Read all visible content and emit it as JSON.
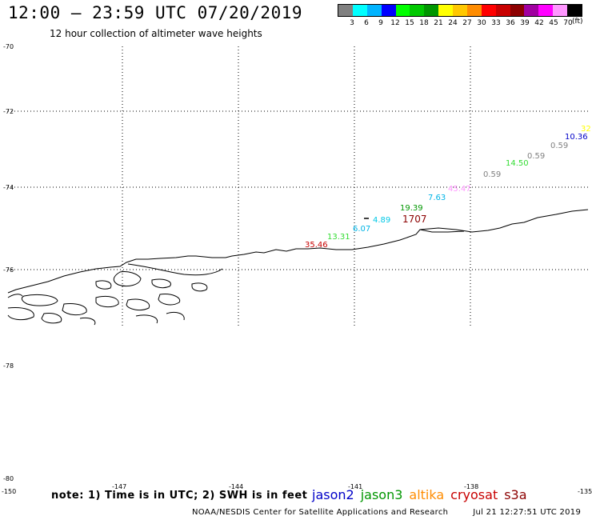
{
  "header": {
    "title": "12:00 – 23:59 UTC 07/20/2019",
    "subtitle": "12 hour collection of altimeter wave heights"
  },
  "legend": {
    "colors": [
      "#808080",
      "#00ffff",
      "#00b4ff",
      "#0000ff",
      "#00ff00",
      "#00c800",
      "#009600",
      "#ffff00",
      "#ffc800",
      "#ff8c00",
      "#ff0000",
      "#c80000",
      "#8c0000",
      "#a000a0",
      "#ff00ff",
      "#ff96ff",
      "#000000"
    ],
    "labels": [
      "3",
      "6",
      "9",
      "12",
      "15",
      "18",
      "21",
      "24",
      "27",
      "30",
      "33",
      "36",
      "39",
      "42",
      "45",
      "70"
    ],
    "unit": "(ft)"
  },
  "axes": {
    "lat_labels": [
      "-70",
      "-72",
      "-74",
      "-76",
      "-78",
      "-80"
    ],
    "lon_labels": [
      "-150",
      "-147",
      "-144",
      "-141",
      "-138",
      "-135"
    ]
  },
  "observations": [
    {
      "text": "32",
      "color": "#ffff00"
    },
    {
      "text": "10.36",
      "color": "#0000c8"
    },
    {
      "text": "0.59",
      "color": "#808080"
    },
    {
      "text": "0.59",
      "color": "#808080"
    },
    {
      "text": "14.50",
      "color": "#32dc32"
    },
    {
      "text": "0.59",
      "color": "#808080"
    },
    {
      "text": "45.47",
      "color": "#ff96ff"
    },
    {
      "text": "7.63",
      "color": "#00b4e6"
    },
    {
      "text": "19.39",
      "color": "#009600"
    },
    {
      "text": "1707",
      "color": "#8c0000"
    },
    {
      "text": "4.89",
      "color": "#00c8e6"
    },
    {
      "text": "6.07",
      "color": "#00b4e6"
    },
    {
      "text": "13.31",
      "color": "#32dc32"
    },
    {
      "text": "35.46",
      "color": "#c80000"
    }
  ],
  "footer": {
    "note": "note: 1) Time is in UTC; 2) SWH is in feet",
    "satellites": [
      {
        "name": "jason2",
        "color": "#0000c8"
      },
      {
        "name": "jason3",
        "color": "#009600"
      },
      {
        "name": "altika",
        "color": "#ff8c00"
      },
      {
        "name": "cryosat",
        "color": "#c80000"
      },
      {
        "name": "s3a",
        "color": "#8c0000"
      }
    ],
    "credit": "NOAA/NESDIS Center for Satellite Applications and Research",
    "timestamp": "Jul 21 12:27:51 UTC 2019"
  }
}
